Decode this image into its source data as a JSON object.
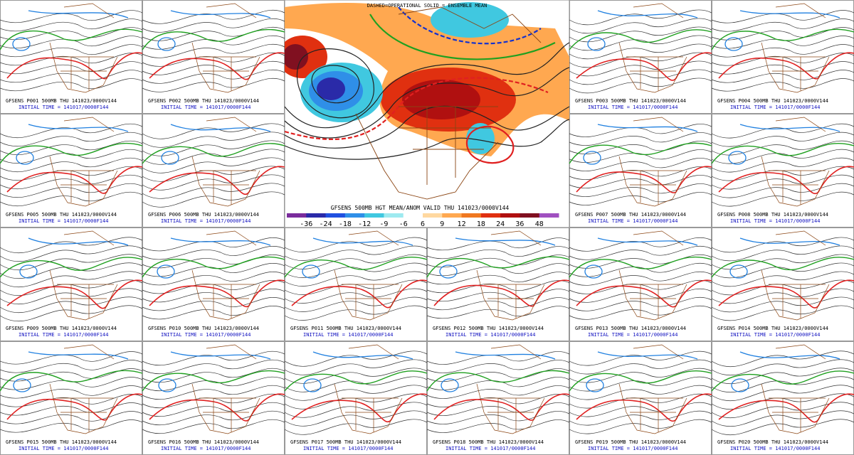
{
  "center": {
    "header": "DASHED=OPERATIONAL   SOLID = ENSEMBLE MEAN",
    "title": "GFSENS 500MB HGT MEAN/ANOM VALID THU 141023/0000V144",
    "colorbar": {
      "labels": [
        -36,
        -24,
        -18,
        -12,
        -9,
        -6,
        6,
        9,
        12,
        18,
        24,
        36,
        48
      ],
      "colors": [
        "#7a2c9c",
        "#2a2aa8",
        "#2050e0",
        "#2f8fe8",
        "#40c8e0",
        "#9eeaf0",
        "#ffffff",
        "#ffd8a0",
        "#ffa850",
        "#f07820",
        "#e03010",
        "#b01010",
        "#801020",
        "#a050c0"
      ]
    }
  },
  "members": [
    {
      "title": "GFSENS P001 500MB THU 141023/0000V144",
      "initial_time": "INITIAL TIME = 141017/0000F144"
    },
    {
      "title": "GFSENS P002 500MB THU 141023/0000V144",
      "initial_time": "INITIAL TIME = 141017/0000F144"
    },
    {
      "title": "GFSENS P003 500MB THU 141023/0000V144",
      "initial_time": "INITIAL TIME = 141017/0000F144"
    },
    {
      "title": "GFSENS P004 500MB THU 141023/0000V144",
      "initial_time": "INITIAL TIME = 141017/0000F144"
    },
    {
      "title": "GFSENS P005 500MB THU 141023/0000V144",
      "initial_time": "INITIAL TIME = 141017/0000F144"
    },
    {
      "title": "GFSENS P006 500MB THU 141023/0000V144",
      "initial_time": "INITIAL TIME = 141017/0000F144"
    },
    {
      "title": "GFSENS P007 500MB THU 141023/0000V144",
      "initial_time": "INITIAL TIME = 141017/0000F144"
    },
    {
      "title": "GFSENS P008 500MB THU 141023/0000V144",
      "initial_time": "INITIAL TIME = 141017/0000F144"
    },
    {
      "title": "GFSENS P009 500MB THU 141023/0000V144",
      "initial_time": "INITIAL TIME = 141017/0000F144"
    },
    {
      "title": "GFSENS P010 500MB THU 141023/0000V144",
      "initial_time": "INITIAL TIME = 141017/0000F144"
    },
    {
      "title": "GFSENS P011 500MB THU 141023/0000V144",
      "initial_time": "INITIAL TIME = 141017/0000F144"
    },
    {
      "title": "GFSENS P012 500MB THU 141023/0000V144",
      "initial_time": "INITIAL TIME = 141017/0000F144"
    },
    {
      "title": "GFSENS P013 500MB THU 141023/0000V144",
      "initial_time": "INITIAL TIME = 141017/0000F144"
    },
    {
      "title": "GFSENS P014 500MB THU 141023/0000V144",
      "initial_time": "INITIAL TIME = 141017/0000F144"
    },
    {
      "title": "GFSENS P015 500MB THU 141023/0000V144",
      "initial_time": "INITIAL TIME = 141017/0000F144"
    },
    {
      "title": "GFSENS P016 500MB THU 141023/0000V144",
      "initial_time": "INITIAL TIME = 141017/0000F144"
    },
    {
      "title": "GFSENS P017 500MB THU 141023/0000V144",
      "initial_time": "INITIAL TIME = 141017/0000F144"
    },
    {
      "title": "GFSENS P018 500MB THU 141023/0000V144",
      "initial_time": "INITIAL TIME = 141017/0000F144"
    },
    {
      "title": "GFSENS P019 500MB THU 141023/0000V144",
      "initial_time": "INITIAL TIME = 141017/0000F144"
    },
    {
      "title": "GFSENS P020 500MB THU 141023/0000V144",
      "initial_time": "INITIAL TIME = 141017/0000F144"
    }
  ]
}
